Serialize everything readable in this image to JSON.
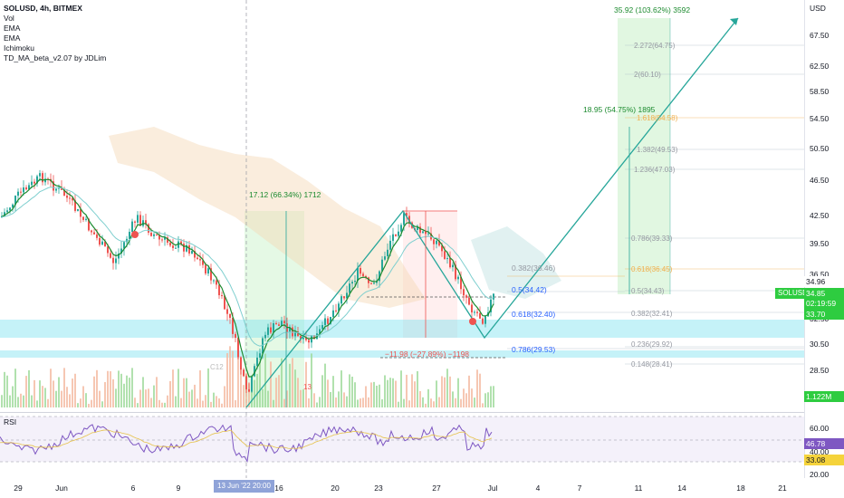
{
  "legend": {
    "symbol": "SOLUSD, 4h, BITMEX",
    "indicators": [
      "Vol",
      "EMA",
      "EMA",
      "Ichimoku",
      "TD_MA_beta_v2.07 by JDLim"
    ]
  },
  "axis": {
    "currency": "USD",
    "price_ticks": [
      "67.50",
      "62.50",
      "58.50",
      "54.50",
      "50.50",
      "46.50",
      "42.50",
      "39.50",
      "36.50",
      "32.50",
      "30.50",
      "28.50"
    ],
    "rsi_ticks": [
      "60.00",
      "40.00",
      "20.00"
    ],
    "date_ticks": [
      "29",
      "Jun",
      "6",
      "9",
      "13",
      "16",
      "20",
      "23",
      "27",
      "Jul",
      "4",
      "7",
      "11",
      "14",
      "18",
      "21"
    ]
  },
  "price_tags": {
    "top": "34.96",
    "symbol": "SOLUSD",
    "last": "34.85",
    "countdown": "02:19:59",
    "low": "33.70",
    "volume": "1.122M",
    "rsi_value": "46.78",
    "rsi_signal": "33.08"
  },
  "rsi": {
    "label": "RSI"
  },
  "crosshair_date": "13 Jun '22  20:00",
  "annotations": {
    "target_long": "35.92 (103.62%) 3592",
    "mid_long": "18.95 (54.75%) 1895",
    "first_leg": "17.12 (66.34%) 1712",
    "drop": "−11.98 (−27.89%) −1198",
    "fib_0618": "0.618(32.40)",
    "fib_0786": "0.786(29.53)",
    "fib_05": "0.5(34.42)",
    "fib_0382": "0.382(36.46)",
    "ext": [
      {
        "label": "2.272(64.75)"
      },
      {
        "label": "2(60.10)"
      },
      {
        "label": "1.618(54.58)"
      },
      {
        "label": "1.382(49.53)"
      },
      {
        "label": "1.236(47.03)"
      },
      {
        "label": "0.786(39.33)"
      },
      {
        "label": "0.618(36.45)"
      },
      {
        "label": "0.5(34.43)"
      },
      {
        "label": "0.382(32.41)"
      },
      {
        "label": "0.236(29.92)"
      },
      {
        "label": "0.148(28.41)"
      }
    ],
    "count_13": "13",
    "count_c12": "C12"
  },
  "colors": {
    "green": "#26a69a",
    "red": "#ef5350",
    "dark_green": "#1b8a2e",
    "zone": "#7fe3f0",
    "fib_blue": "#2962ff"
  }
}
